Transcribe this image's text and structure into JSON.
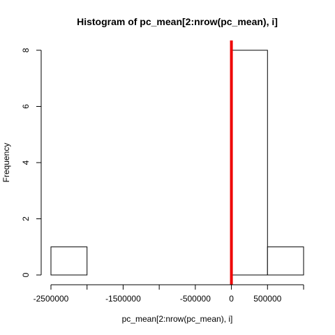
{
  "chart_data": {
    "type": "bar",
    "title": "Histogram of pc_mean[2:nrow(pc_mean), i]",
    "xlabel": "pc_mean[2:nrow(pc_mean), i]",
    "ylabel": "Frequency",
    "bins": [
      {
        "start": -2500000,
        "end": -2000000,
        "count": 1
      },
      {
        "start": -2000000,
        "end": -1500000,
        "count": 0
      },
      {
        "start": -1500000,
        "end": -1000000,
        "count": 0
      },
      {
        "start": -1000000,
        "end": -500000,
        "count": 0
      },
      {
        "start": -500000,
        "end": 0,
        "count": 0
      },
      {
        "start": 0,
        "end": 500000,
        "count": 8
      },
      {
        "start": 500000,
        "end": 1000000,
        "count": 1
      }
    ],
    "xlim": [
      -2500000,
      1000000
    ],
    "ylim": [
      0,
      8
    ],
    "x_tick_values": [
      -2500000,
      -2000000,
      -1500000,
      -1000000,
      -500000,
      0,
      500000,
      1000000
    ],
    "x_tick_labels": [
      "-2500000",
      "",
      "-1500000",
      "",
      "-500000",
      "0",
      "500000",
      ""
    ],
    "y_ticks": [
      0,
      2,
      4,
      6,
      8
    ],
    "y_tick_labels": [
      "0",
      "2",
      "4",
      "6",
      "8"
    ],
    "reference_line": {
      "x": 0,
      "color": "#ee0000"
    },
    "grid": false
  }
}
